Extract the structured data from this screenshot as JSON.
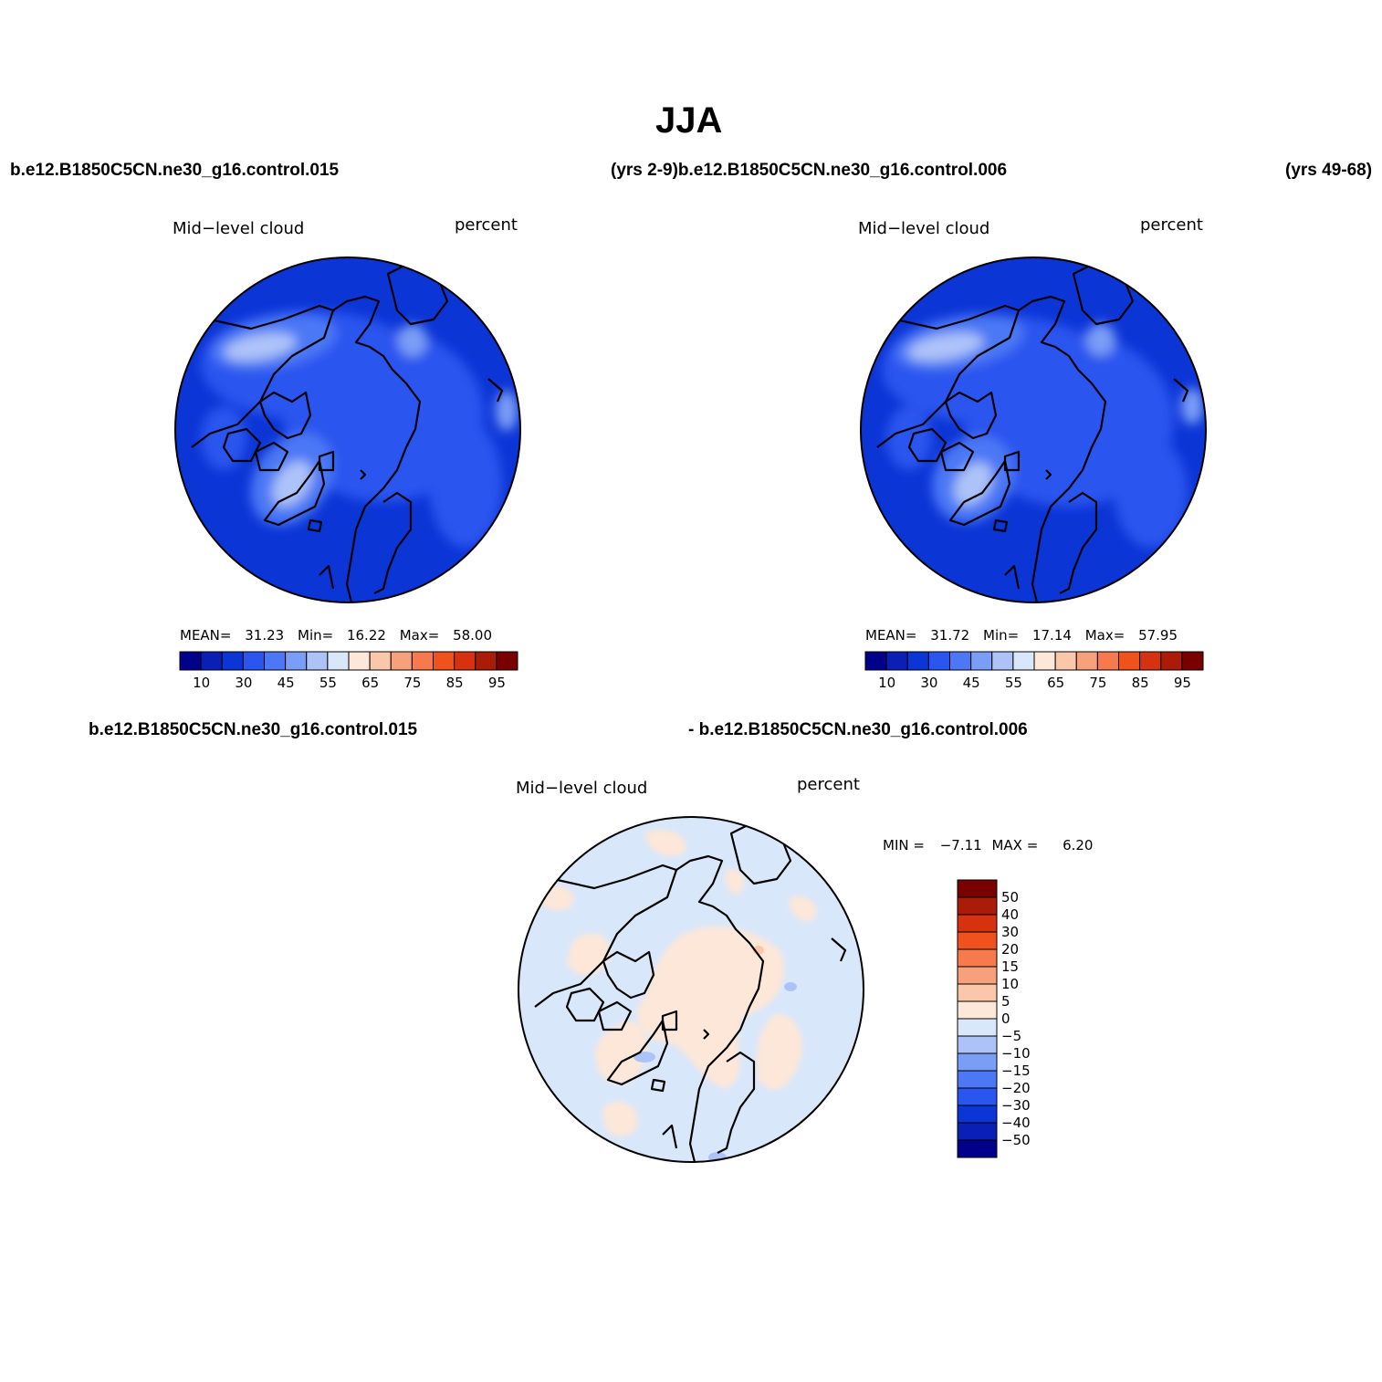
{
  "title": "JJA",
  "labels": {
    "top_left_case": "b.e12.B1850C5CN.ne30_g16.control.015",
    "top_mid": "(yrs 2-9)b.e12.B1850C5CN.ne30_g16.control.006",
    "top_right": "(yrs 49-68)",
    "bottom_left_case": "b.e12.B1850C5CN.ne30_g16.control.015",
    "bottom_right_case": "- b.e12.B1850C5CN.ne30_g16.control.006"
  },
  "panels": [
    {
      "variable": "Mid−level cloud",
      "units": "percent",
      "stats": {
        "mean_label": "MEAN=",
        "mean": "31.23",
        "min_label": "Min=",
        "min": "16.22",
        "max_label": "Max=",
        "max": "58.00"
      }
    },
    {
      "variable": "Mid−level cloud",
      "units": "percent",
      "stats": {
        "mean_label": "MEAN=",
        "mean": "31.72",
        "min_label": "Min=",
        "min": "17.14",
        "max_label": "Max=",
        "max": "57.95"
      }
    },
    {
      "variable": "Mid−level cloud",
      "units": "percent",
      "stats": {
        "min_label": "MIN =",
        "min": "−7.11",
        "max_label": "MAX =",
        "max": "6.20"
      }
    }
  ],
  "abs_colorbar": {
    "colors": [
      "#00008b",
      "#0a1fb5",
      "#0c35d6",
      "#2a55ef",
      "#4c78f5",
      "#7a9ef6",
      "#adc3f8",
      "#d9e7fb",
      "#fde7d8",
      "#fbc7aa",
      "#f6a07c",
      "#f67a4e",
      "#f0521e",
      "#d6320f",
      "#aa1b08",
      "#7a0000"
    ],
    "tick_labels": [
      "10",
      "30",
      "45",
      "55",
      "65",
      "75",
      "85",
      "95"
    ]
  },
  "diff_colorbar": {
    "colors": [
      "#7a0000",
      "#aa1b08",
      "#d6320f",
      "#f0521e",
      "#f67a4e",
      "#f6a07c",
      "#fbc7aa",
      "#fde7d8",
      "#d9e7fb",
      "#adc3f8",
      "#7a9ef6",
      "#4c78f5",
      "#2a55ef",
      "#0c35d6",
      "#0a1fb5",
      "#00008b"
    ],
    "tick_labels": [
      "50",
      "40",
      "30",
      "20",
      "15",
      "10",
      "5",
      "0",
      "−5",
      "−10",
      "−15",
      "−20",
      "−30",
      "−40",
      "−50"
    ]
  }
}
